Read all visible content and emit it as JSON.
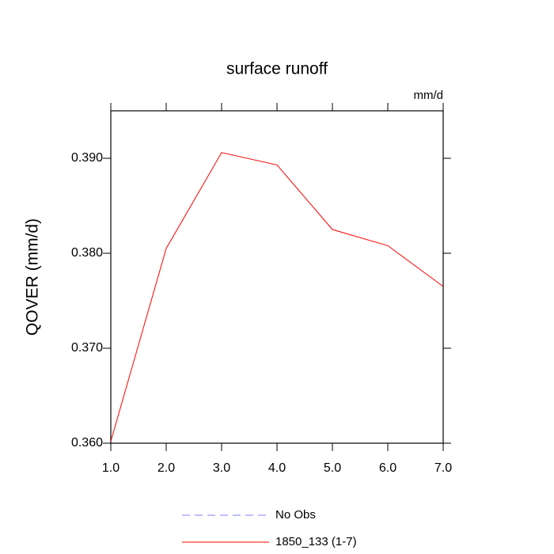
{
  "chart_data": {
    "type": "line",
    "title": "surface runoff",
    "units": "mm/d",
    "y_label": "QOVER  (mm/d)",
    "x": [
      1,
      2,
      3,
      4,
      5,
      6,
      7
    ],
    "series": [
      {
        "name": "No Obs",
        "color": "#8080ff",
        "dash": true,
        "values": [
          null,
          null,
          null,
          null,
          null,
          null,
          null
        ]
      },
      {
        "name": "1850_133 (1-7)",
        "color": "#ff0000",
        "dash": false,
        "values": [
          0.3602,
          0.3805,
          0.3906,
          0.3893,
          0.3825,
          0.3808,
          0.3765
        ]
      }
    ],
    "xlim": [
      1,
      7
    ],
    "xticks": [
      {
        "value": 1,
        "label": "1.0"
      },
      {
        "value": 2,
        "label": "2.0"
      },
      {
        "value": 3,
        "label": "3.0"
      },
      {
        "value": 4,
        "label": "4.0"
      },
      {
        "value": 5,
        "label": "5.0"
      },
      {
        "value": 6,
        "label": "6.0"
      },
      {
        "value": 7,
        "label": "7.0"
      }
    ],
    "ylim": [
      0.36,
      0.395
    ],
    "yticks": [
      {
        "value": 0.36,
        "label": "0.360"
      },
      {
        "value": 0.37,
        "label": "0.370"
      },
      {
        "value": 0.38,
        "label": "0.380"
      },
      {
        "value": 0.39,
        "label": "0.390"
      }
    ]
  }
}
